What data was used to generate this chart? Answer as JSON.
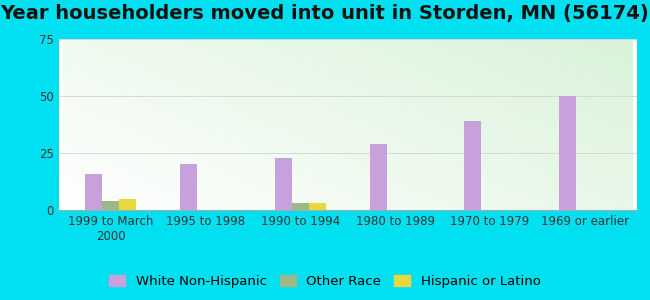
{
  "title": "Year householders moved into unit in Storden, MN (56174)",
  "categories": [
    "1999 to March\n2000",
    "1995 to 1998",
    "1990 to 1994",
    "1980 to 1989",
    "1970 to 1979",
    "1969 or earlier"
  ],
  "white_non_hispanic": [
    16,
    20,
    23,
    29,
    39,
    50
  ],
  "other_race": [
    4,
    0,
    3,
    0,
    0,
    0
  ],
  "hispanic_or_latino": [
    5,
    0,
    3,
    0,
    0,
    0
  ],
  "bar_width": 0.18,
  "ylim": [
    0,
    75
  ],
  "yticks": [
    0,
    25,
    50,
    75
  ],
  "color_white": "#c8a0dc",
  "color_other": "#9db888",
  "color_hispanic": "#e8d840",
  "bg_outer": "#00e0f0",
  "grid_color": "#d8d8d8",
  "title_fontsize": 14,
  "tick_fontsize": 8.5,
  "legend_fontsize": 9.5
}
